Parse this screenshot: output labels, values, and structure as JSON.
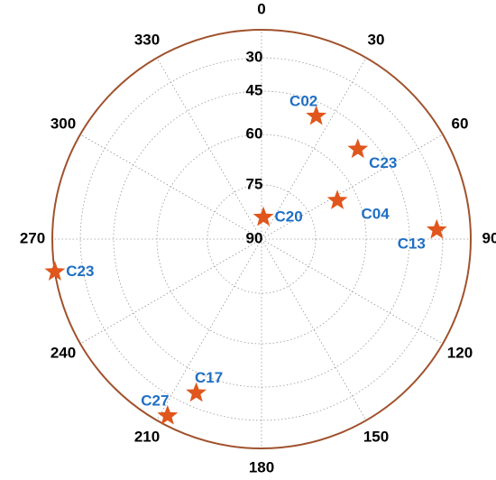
{
  "chart_data": {
    "type": "polar",
    "categories": [
      "C02",
      "C23",
      "C04",
      "C20",
      "C13",
      "C23",
      "C17",
      "C27"
    ],
    "azimuth": [
      24,
      47,
      63,
      5,
      87,
      261,
      203,
      208
    ],
    "elevation": [
      50,
      51,
      66,
      84,
      33,
      0,
      37,
      17
    ],
    "color": "#e0561c",
    "label_color": "#1f6fc4",
    "rim_color": "#a0522d",
    "thetaticks": [
      0,
      30,
      60,
      90,
      120,
      150,
      180,
      210,
      240,
      270,
      300,
      330
    ],
    "rlim": [
      0,
      90
    ],
    "rticks": [
      30,
      45,
      60,
      75,
      90
    ],
    "grid": true
  }
}
